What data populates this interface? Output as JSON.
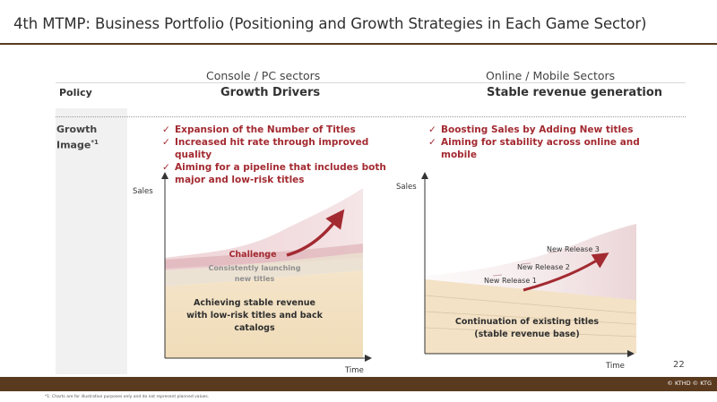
{
  "page": {
    "title": "4th MTMP: Business Portfolio (Positioning and Growth Strategies in Each Game Sector)",
    "page_number": "22",
    "copyright": "© KTHD © KTG",
    "footnote": "*1: Charts are for illustrative purposes only and do not represent planned values."
  },
  "columns": {
    "left_header": "Console / PC sectors",
    "right_header": "Online / Mobile Sectors"
  },
  "rows": {
    "policy_label": "Policy",
    "growth_label": "Growth Image",
    "growth_label_sup": "*1"
  },
  "left": {
    "policy": "Growth Drivers",
    "bullets": [
      "Expansion of the Number of Titles",
      "Increased hit rate through improved quality",
      "Aiming for a pipeline that includes both major and low-risk titles"
    ],
    "chart": {
      "y_label": "Sales",
      "x_label": "Time",
      "challenge": "Challenge",
      "launching_line1": "Consistently launching",
      "launching_line2": "new titles",
      "stable_line1": "Achieving stable revenue",
      "stable_line2": "with low-risk titles and back",
      "stable_line3": "catalogs"
    }
  },
  "right": {
    "policy": "Stable revenue generation",
    "bullets": [
      "Boosting Sales by Adding New titles",
      "Aiming for stability across online and mobile"
    ],
    "chart": {
      "y_label": "Sales",
      "x_label": "Time",
      "release3": "New Release 3",
      "release2": "New Release 2",
      "release1": "New Release 1",
      "existing_line1": "Continuation of existing titles",
      "existing_line2": "(stable revenue base)"
    }
  },
  "colors": {
    "brand_brown": "#5a3a1f",
    "accent_red": "#a32a31",
    "base_beige": "#f3e2c6",
    "pink_fill": "#e7c2c6"
  }
}
